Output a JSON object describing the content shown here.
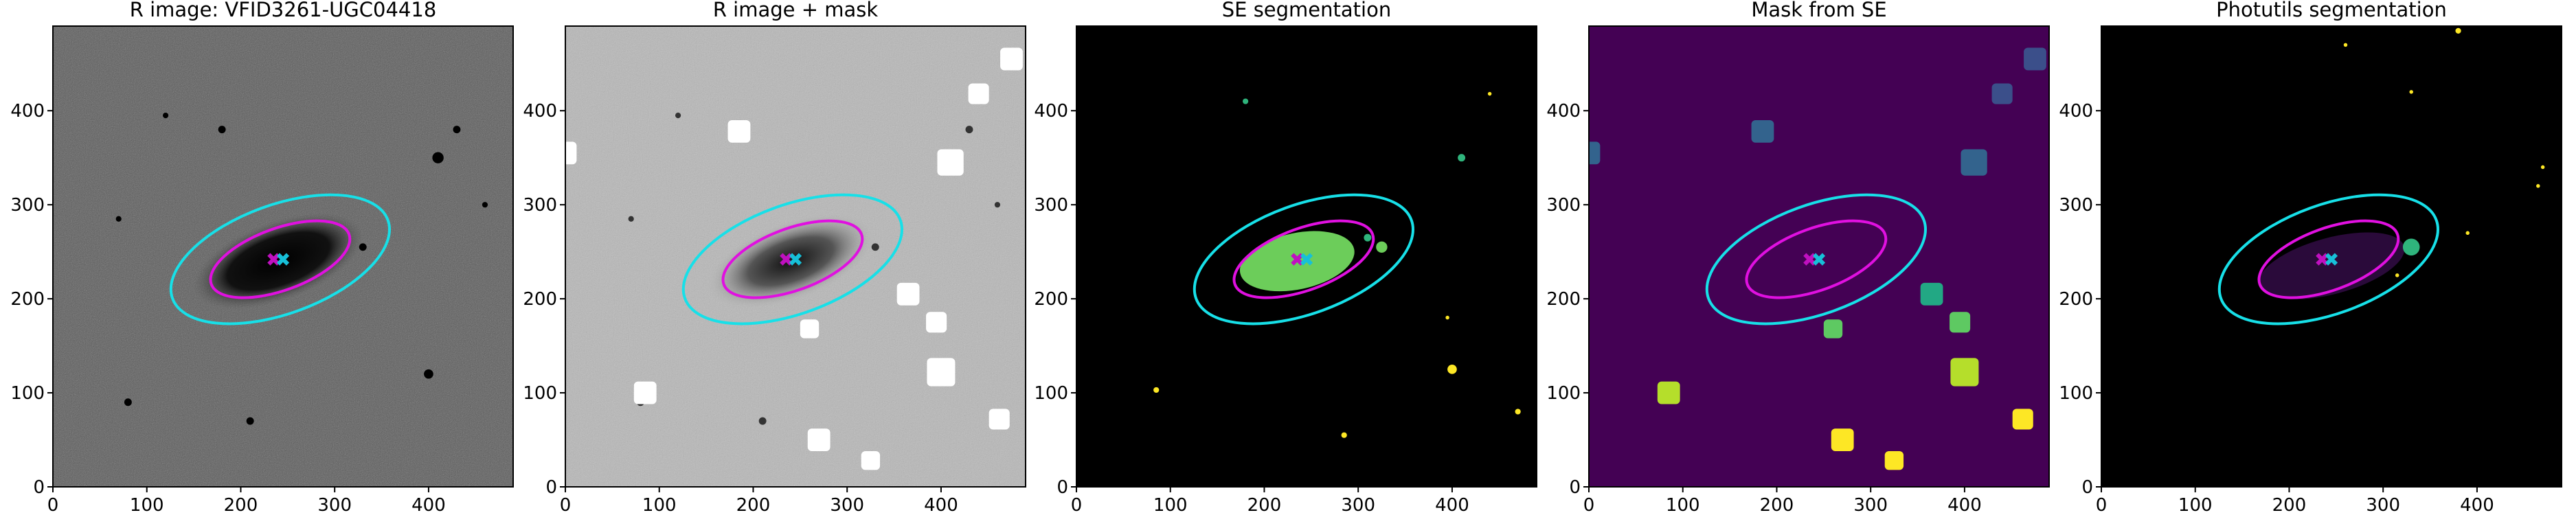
{
  "chart_data": [
    {
      "type": "image",
      "title": "R image: VFID3261-UGC04418",
      "xlim": [
        0,
        490
      ],
      "ylim": [
        0,
        490
      ],
      "xticks": [
        0,
        100,
        200,
        300,
        400
      ],
      "yticks": [
        0,
        100,
        200,
        300,
        400
      ]
    },
    {
      "type": "image",
      "title": "R image + mask",
      "xlim": [
        0,
        490
      ],
      "ylim": [
        0,
        490
      ],
      "xticks": [
        0,
        100,
        200,
        300,
        400
      ],
      "yticks": [
        0,
        100,
        200,
        300,
        400
      ]
    },
    {
      "type": "image",
      "title": "SE segmentation",
      "xlim": [
        0,
        490
      ],
      "ylim": [
        0,
        490
      ],
      "xticks": [
        0,
        100,
        200,
        300,
        400
      ],
      "yticks": [
        0,
        100,
        200,
        300,
        400
      ]
    },
    {
      "type": "image",
      "title": "Mask from SE",
      "xlim": [
        0,
        490
      ],
      "ylim": [
        0,
        490
      ],
      "xticks": [
        0,
        100,
        200,
        300,
        400
      ],
      "yticks": [
        0,
        100,
        200,
        300,
        400
      ]
    },
    {
      "type": "image",
      "title": "Photutils segmentation",
      "xlim": [
        0,
        490
      ],
      "ylim": [
        0,
        490
      ],
      "xticks": [
        0,
        100,
        200,
        300,
        400
      ],
      "yticks": [
        0,
        100,
        200,
        300,
        400
      ]
    }
  ]
}
